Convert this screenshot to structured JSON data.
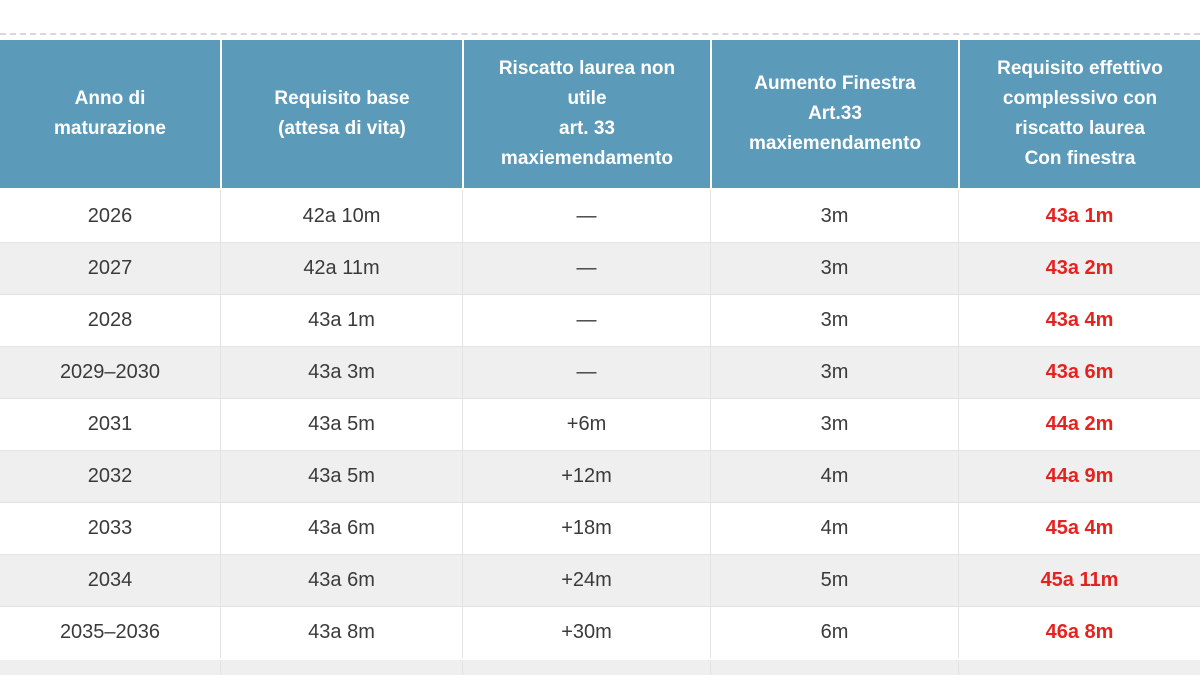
{
  "colors": {
    "header_bg": "#5b9ab8",
    "header_text": "#ffffff",
    "body_text": "#3a3a3a",
    "highlight_red": "#e42320",
    "row_alt_bg": "#efefef"
  },
  "table": {
    "columns": [
      {
        "label": "Anno di\nmaturazione"
      },
      {
        "label": "Requisito base\n(attesa di vita)"
      },
      {
        "label": "Riscatto laurea non\nutile\nart. 33\nmaxiemendamento"
      },
      {
        "label": "Aumento Finestra\nArt.33\nmaxiemendamento"
      },
      {
        "label": "Requisito effettivo\ncomplessivo con\nriscatto laurea\nCon finestra"
      }
    ],
    "fields": [
      "anno",
      "base",
      "riscatto",
      "finestra",
      "effettivo"
    ],
    "rows": [
      {
        "anno": "2026",
        "base": "42a 10m",
        "riscatto": "—",
        "finestra": "3m",
        "effettivo": "43a 1m"
      },
      {
        "anno": "2027",
        "base": "42a 11m",
        "riscatto": "—",
        "finestra": "3m",
        "effettivo": "43a 2m"
      },
      {
        "anno": "2028",
        "base": "43a 1m",
        "riscatto": "—",
        "finestra": "3m",
        "effettivo": "43a 4m"
      },
      {
        "anno": "2029–2030",
        "base": "43a 3m",
        "riscatto": "—",
        "finestra": "3m",
        "effettivo": "43a 6m"
      },
      {
        "anno": "2031",
        "base": "43a 5m",
        "riscatto": "+6m",
        "finestra": "3m",
        "effettivo": "44a 2m"
      },
      {
        "anno": "2032",
        "base": "43a 5m",
        "riscatto": "+12m",
        "finestra": "4m",
        "effettivo": "44a 9m"
      },
      {
        "anno": "2033",
        "base": "43a 6m",
        "riscatto": "+18m",
        "finestra": "4m",
        "effettivo": "45a 4m"
      },
      {
        "anno": "2034",
        "base": "43a 6m",
        "riscatto": "+24m",
        "finestra": "5m",
        "effettivo": "45a 11m"
      },
      {
        "anno": "2035–2036",
        "base": "43a 8m",
        "riscatto": "+30m",
        "finestra": "6m",
        "effettivo": "46a 8m"
      }
    ]
  },
  "chart_data": {
    "type": "table",
    "title": "",
    "columns": [
      "Anno di maturazione",
      "Requisito base (attesa di vita)",
      "Riscatto laurea non utile art. 33 maxiemendamento",
      "Aumento Finestra Art.33 maxiemendamento",
      "Requisito effettivo complessivo con riscatto laurea Con finestra"
    ],
    "rows": [
      [
        "2026",
        "42a 10m",
        "—",
        "3m",
        "43a 1m"
      ],
      [
        "2027",
        "42a 11m",
        "—",
        "3m",
        "43a 2m"
      ],
      [
        "2028",
        "43a 1m",
        "—",
        "3m",
        "43a 4m"
      ],
      [
        "2029–2030",
        "43a 3m",
        "—",
        "3m",
        "43a 6m"
      ],
      [
        "2031",
        "43a 5m",
        "+6m",
        "3m",
        "44a 2m"
      ],
      [
        "2032",
        "43a 5m",
        "+12m",
        "4m",
        "44a 9m"
      ],
      [
        "2033",
        "43a 6m",
        "+18m",
        "4m",
        "45a 4m"
      ],
      [
        "2034",
        "43a 6m",
        "+24m",
        "5m",
        "45a 11m"
      ],
      [
        "2035–2036",
        "43a 8m",
        "+30m",
        "6m",
        "46a 8m"
      ]
    ],
    "layout_hints": {
      "zebra_striping": true,
      "last_column_color": "#e42320",
      "header_background": "#5b9ab8"
    }
  }
}
